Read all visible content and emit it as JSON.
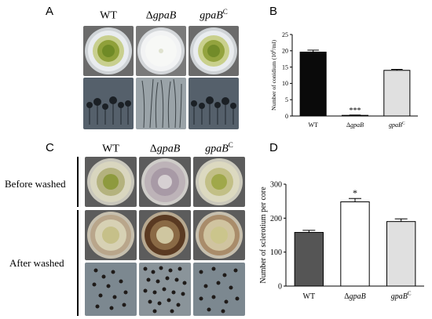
{
  "panels": {
    "A": {
      "label": "A",
      "headers": [
        {
          "pre": "",
          "ital": "",
          "plain": "WT",
          "sup": ""
        },
        {
          "pre": "Δ",
          "ital": "gpaB",
          "plain": "",
          "sup": ""
        },
        {
          "pre": "",
          "ital": "gpaB",
          "plain": "",
          "sup": "C"
        }
      ]
    },
    "B": {
      "label": "B"
    },
    "C": {
      "label": "C",
      "headers": [
        {
          "pre": "",
          "ital": "",
          "plain": "WT",
          "sup": ""
        },
        {
          "pre": "Δ",
          "ital": "gpaB",
          "plain": "",
          "sup": ""
        },
        {
          "pre": "",
          "ital": "gpaB",
          "plain": "",
          "sup": "C"
        }
      ],
      "row_before": "Before washed",
      "row_after": "After washed"
    },
    "D": {
      "label": "D"
    }
  },
  "colors": {
    "wt_bar": "#0a0a0a",
    "wt_bar_d": "#555555",
    "mutant_bar": "#ffffff",
    "comp_bar": "#e0e0e0",
    "colony_green": "#9aaa4a",
    "plate_rim": "#d8d8d8",
    "photo_dark": "#404a54"
  },
  "chart_data": [
    {
      "type": "bar",
      "panel": "B",
      "categories": [
        "WT",
        "ΔgpaB",
        "gpaBC"
      ],
      "category_labels": [
        {
          "pre": "",
          "ital": "",
          "plain": "WT",
          "sup": ""
        },
        {
          "pre": "Δ",
          "ital": "gpaB",
          "plain": "",
          "sup": ""
        },
        {
          "pre": "",
          "ital": "gpaB",
          "plain": "",
          "sup": "C"
        }
      ],
      "values": [
        19.6,
        0.2,
        14.0
      ],
      "errors": [
        0.6,
        0.1,
        0.3
      ],
      "annotations": [
        "",
        "***",
        ""
      ],
      "ylabel": "Number of conidium (10",
      "ylabel_sup": "6",
      "ylabel_tail": "/ml)",
      "ylim": [
        0,
        25
      ],
      "yticks": [
        0,
        5,
        10,
        15,
        20,
        25
      ],
      "bar_colors": [
        "#0a0a0a",
        "#ffffff",
        "#e0e0e0"
      ]
    },
    {
      "type": "bar",
      "panel": "D",
      "categories": [
        "WT",
        "ΔgpaB",
        "gpaBC"
      ],
      "category_labels": [
        {
          "pre": "",
          "ital": "",
          "plain": "WT",
          "sup": ""
        },
        {
          "pre": "Δ",
          "ital": "gpaB",
          "plain": "",
          "sup": ""
        },
        {
          "pre": "",
          "ital": "gpaB",
          "plain": "",
          "sup": "C"
        }
      ],
      "values": [
        158,
        248,
        190
      ],
      "errors": [
        6,
        10,
        8
      ],
      "annotations": [
        "",
        "*",
        ""
      ],
      "ylabel": "Number of sclerotium per core",
      "ylabel_sup": "",
      "ylabel_tail": "",
      "ylim": [
        0,
        300
      ],
      "yticks": [
        0,
        100,
        200,
        300
      ],
      "bar_colors": [
        "#555555",
        "#ffffff",
        "#e0e0e0"
      ]
    }
  ]
}
